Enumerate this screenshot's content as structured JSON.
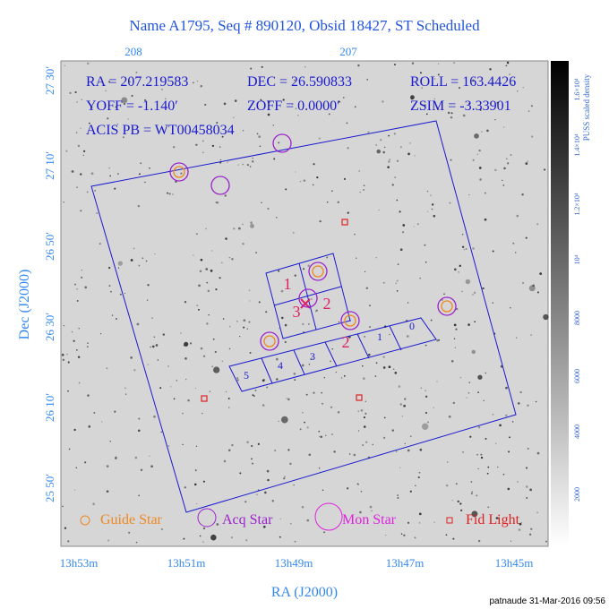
{
  "title": "Name A1795, Seq # 890120, Obsid 18427, ST Scheduled",
  "top_axis_labels": [
    "208",
    "207"
  ],
  "left_axis_labels": [
    "27 30′",
    "27 10′",
    "26 50′",
    "26 30′",
    "26 10′",
    "25 50′"
  ],
  "y_axis_title": "Dec (J2000)",
  "bottom_axis_labels": [
    "13h53m",
    "13h51m",
    "13h49m",
    "13h47m",
    "13h45m"
  ],
  "x_axis_title": "RA (J2000)",
  "info": [
    "RA = 207.219583",
    "DEC = 26.590833",
    "ROLL = 163.4426",
    "YOFF = -1.140′",
    "ZOFF = 0.0000′",
    "ZSIM = -3.33901",
    "ACIS PB = WT00458034"
  ],
  "legend": [
    "Guide Star",
    "Acq Star",
    "Mon Star",
    "Fid Light"
  ],
  "chip_labels_s": [
    "5",
    "4",
    "3",
    "2",
    "1",
    "0"
  ],
  "chip_labels_i": [
    "1",
    "2",
    "3"
  ],
  "colorbar": {
    "title": "PUSS scaled density",
    "labels": [
      "2000",
      "4000",
      "6000",
      "8000",
      "10⁴",
      "1.2×10⁴",
      "1.4×10⁴",
      "1.6×10⁴"
    ]
  },
  "footer": "patnaude 31-Mar-2016 09:56"
}
